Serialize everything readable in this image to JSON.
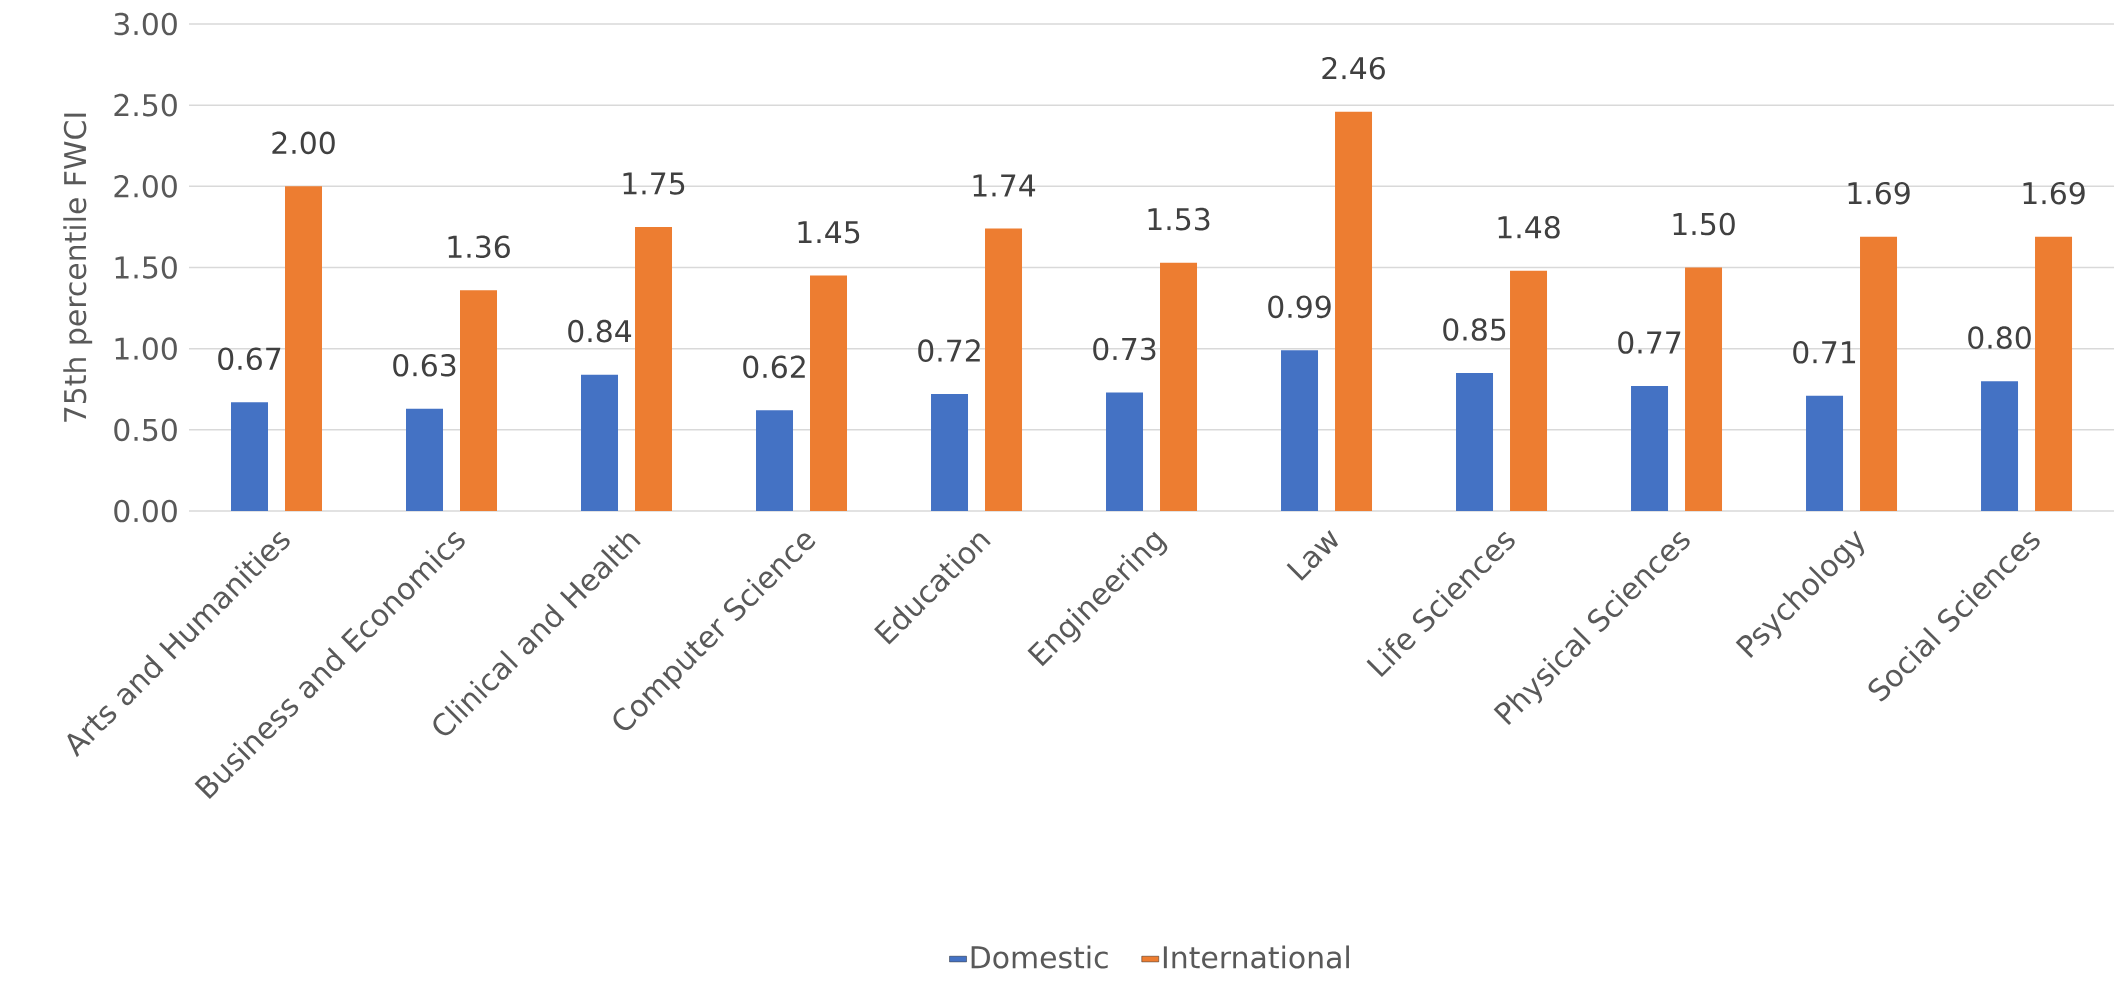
{
  "chart_data": {
    "type": "bar",
    "ylabel": "75th percentile FWCI",
    "categories": [
      "Arts and Humanities",
      "Business and Economics",
      "Clinical and Health",
      "Computer Science",
      "Education",
      "Engineering",
      "Law",
      "Life Sciences",
      "Physical Sciences",
      "Psychology",
      "Social Sciences"
    ],
    "series": [
      {
        "name": "Domestic",
        "color": "#4472c4",
        "values": [
          0.67,
          0.63,
          0.84,
          0.62,
          0.72,
          0.73,
          0.99,
          0.85,
          0.77,
          0.71,
          0.8
        ],
        "value_labels": [
          "0.67",
          "0.63",
          "0.84",
          "0.62",
          "0.72",
          "0.73",
          "0.99",
          "0.85",
          "0.77",
          "0.71",
          "0.80"
        ]
      },
      {
        "name": "International",
        "color": "#ed7d31",
        "values": [
          2.0,
          1.36,
          1.75,
          1.45,
          1.74,
          1.53,
          2.46,
          1.48,
          1.5,
          1.69,
          1.69
        ],
        "value_labels": [
          "2.00",
          "1.36",
          "1.75",
          "1.45",
          "1.74",
          "1.53",
          "2.46",
          "1.48",
          "1.50",
          "1.69",
          "1.69"
        ]
      }
    ],
    "ylim": [
      0,
      3
    ],
    "yticks": [
      {
        "value": 0,
        "label": "0.00"
      },
      {
        "value": 0.5,
        "label": "0.50"
      },
      {
        "value": 1,
        "label": "1.00"
      },
      {
        "value": 1.5,
        "label": "1.50"
      },
      {
        "value": 2,
        "label": "2.00"
      },
      {
        "value": 2.5,
        "label": "2.50"
      },
      {
        "value": 3,
        "label": "3.00"
      }
    ],
    "grid": "y",
    "legend": "bottom"
  }
}
